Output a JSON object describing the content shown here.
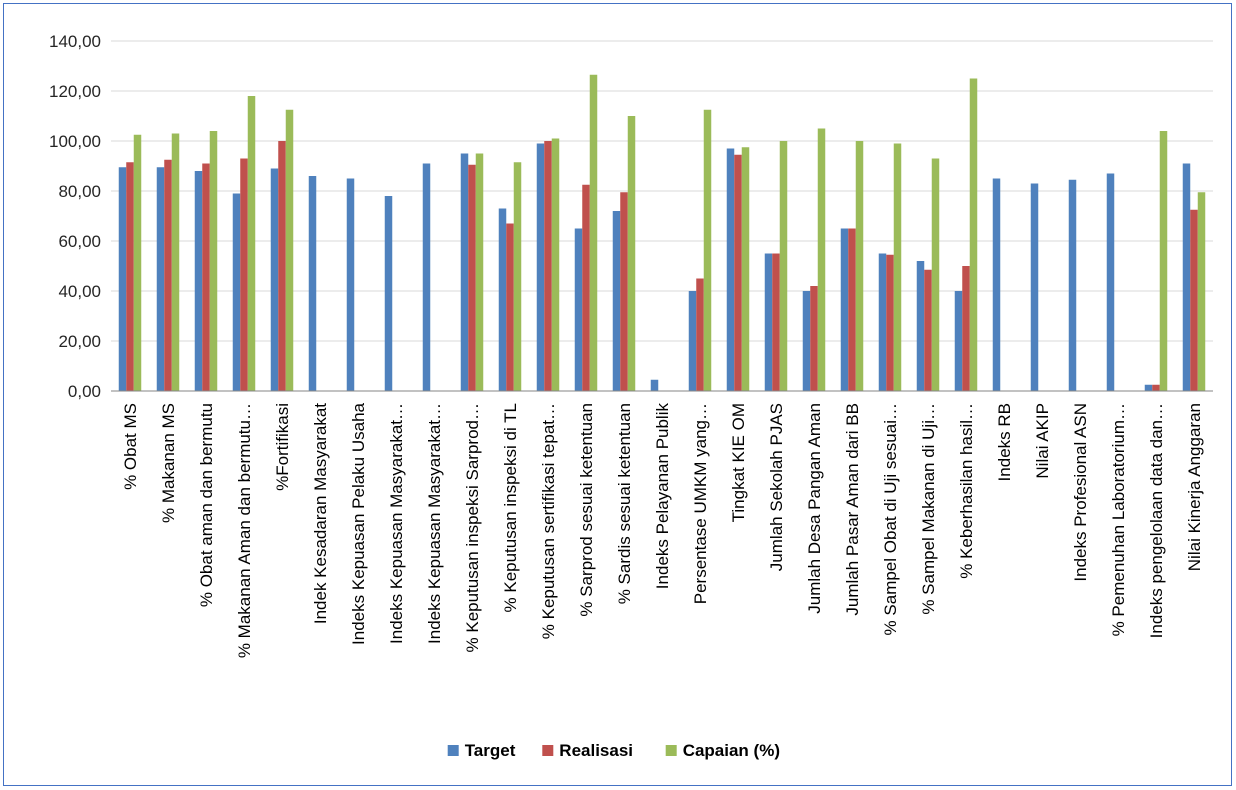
{
  "chart_data": {
    "type": "bar",
    "title": "",
    "xlabel": "",
    "ylabel": "",
    "ylim": [
      0,
      140
    ],
    "ytick_values": [
      0,
      20,
      40,
      60,
      80,
      100,
      120,
      140
    ],
    "ytick_labels": [
      "0,00",
      "20,00",
      "40,00",
      "60,00",
      "80,00",
      "100,00",
      "120,00",
      "140,00"
    ],
    "grid": "horizontal",
    "legend_position": "bottom",
    "categories": [
      "% Obat MS",
      "% Makanan MS",
      "% Obat aman dan bermutu",
      "% Makanan Aman dan bermutu…",
      "%Fortifikasi",
      "Indek Kesadaran Masyarakat",
      "Indeks Kepuasan Pelaku Usaha",
      "Indeks Kepuasan Masyarakat…",
      "Indeks Kepuasan Masyarakat…",
      "% Keputusan inspeksi Sarprod…",
      "% Keputusan inspeksi di TL",
      "% Keputusan sertifikasi tepat…",
      "% Sarprod sesuai ketentuan",
      "% Sardis sesuai ketentuan",
      "Indeks Pelayanan Publik",
      "Persentase UMKM yang…",
      "Tingkat KIE OM",
      "Jumlah Sekolah PJAS",
      "Jumlah Desa Pangan Aman",
      "Jumlah Pasar Aman dari BB",
      "% Sampel Obat di Uji sesuai…",
      "% Sampel Makanan di Uji…",
      "% Keberhasilan hasil…",
      "Indeks RB",
      "Nilai AKIP",
      "Indeks Profesional ASN",
      "% Pemenuhan Laboratorium…",
      "Indeks pengelolaan data dan…",
      "Nilai Kinerja Anggaran"
    ],
    "series": [
      {
        "name": "Target",
        "color": "#4f81bd",
        "values": [
          89.5,
          89.5,
          88,
          79,
          89,
          86,
          85,
          78,
          91,
          95,
          73,
          99,
          65,
          72,
          4.5,
          40,
          97,
          55,
          40,
          65,
          55,
          52,
          40,
          85,
          83,
          84.5,
          87,
          2.5,
          91
        ]
      },
      {
        "name": "Realisasi",
        "color": "#c0504d",
        "values": [
          91.5,
          92.5,
          91,
          93,
          100,
          null,
          null,
          null,
          null,
          90.5,
          67,
          100,
          82.5,
          79.5,
          null,
          45,
          94.5,
          55,
          42,
          65,
          54.5,
          48.5,
          50,
          null,
          null,
          null,
          null,
          2.5,
          72.5
        ]
      },
      {
        "name": "Capaian (%)",
        "color": "#9bbb59",
        "values": [
          102.5,
          103,
          104,
          118,
          112.5,
          null,
          null,
          null,
          null,
          95,
          91.5,
          101,
          126.5,
          110,
          null,
          112.5,
          97.5,
          100,
          105,
          100,
          99,
          93,
          125,
          null,
          null,
          null,
          null,
          104,
          79.5
        ]
      }
    ]
  }
}
